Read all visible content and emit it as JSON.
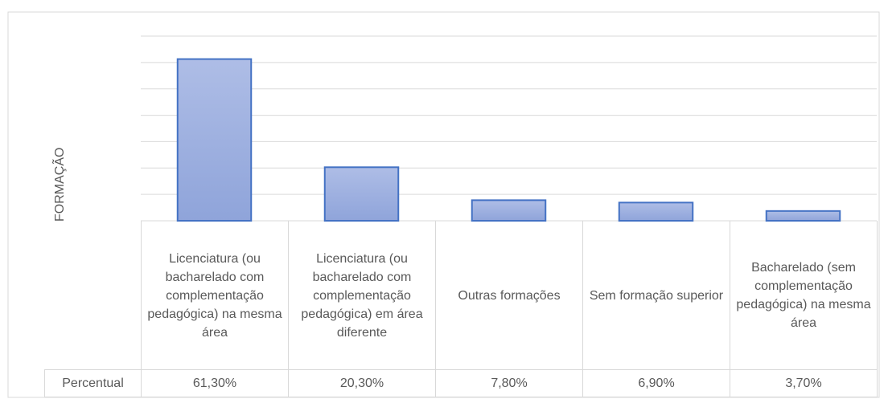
{
  "chart_data": {
    "type": "bar",
    "y_label": "FORMAÇÃO",
    "categories": [
      "Licenciatura (ou bacharelado com complementação pedagógica) na mesma área",
      "Licenciatura (ou bacharelado com complementação pedagógica) em área diferente",
      "Outras formações",
      "Sem formação superior",
      "Bacharelado (sem complementação pedagógica) na mesma área"
    ],
    "series": [
      {
        "name": "Percentual",
        "color": "#9fb1e0",
        "values": [
          61.3,
          20.3,
          7.8,
          6.9,
          3.7
        ],
        "value_labels": [
          "61,30%",
          "20,30%",
          "7,80%",
          "6,90%",
          "3,70%"
        ]
      }
    ],
    "ylim": [
      0,
      70
    ],
    "yticks": [
      0,
      10,
      20,
      30,
      40,
      50,
      60,
      70
    ],
    "grid": true
  }
}
